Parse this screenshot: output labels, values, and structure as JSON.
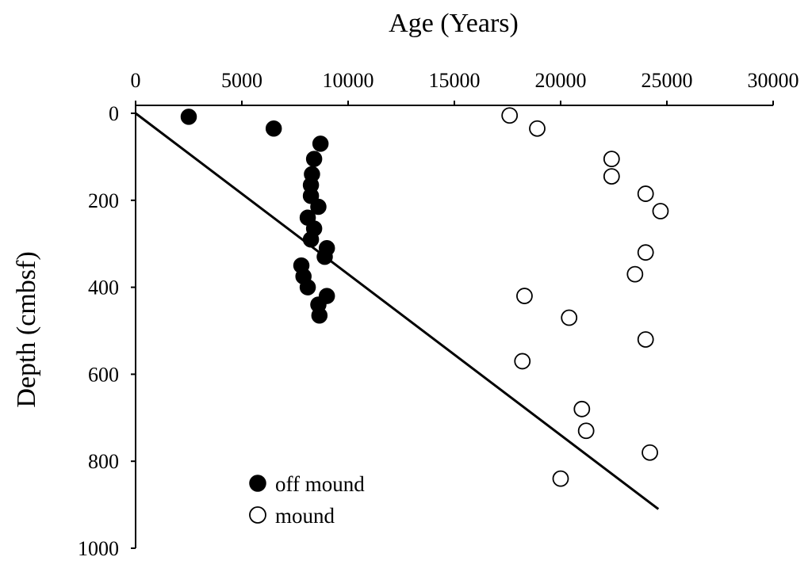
{
  "chart_data": {
    "type": "scatter",
    "xlabel": "Age (Years)",
    "ylabel": "Depth (cmbsf)",
    "xlim": [
      0,
      30000
    ],
    "ylim": [
      0,
      1000
    ],
    "xticks": [
      "0",
      "5000",
      "10000",
      "15000",
      "20000",
      "25000",
      "30000"
    ],
    "yticks": [
      "0",
      "200",
      "400",
      "600",
      "800",
      "1000"
    ],
    "y_inverted": true,
    "legend_position": "bottom-left",
    "series": [
      {
        "name": "off mound",
        "marker": "filled-circle",
        "color": "#000000",
        "points": [
          [
            2500,
            8
          ],
          [
            6500,
            35
          ],
          [
            8700,
            70
          ],
          [
            8400,
            105
          ],
          [
            8300,
            140
          ],
          [
            8250,
            165
          ],
          [
            8250,
            190
          ],
          [
            8600,
            215
          ],
          [
            8100,
            240
          ],
          [
            8400,
            265
          ],
          [
            8250,
            290
          ],
          [
            9000,
            310
          ],
          [
            8900,
            330
          ],
          [
            7800,
            350
          ],
          [
            7900,
            375
          ],
          [
            8100,
            400
          ],
          [
            9000,
            420
          ],
          [
            8600,
            440
          ],
          [
            8650,
            465
          ]
        ]
      },
      {
        "name": "mound",
        "marker": "open-circle",
        "color": "#ffffff",
        "points": [
          [
            17600,
            5
          ],
          [
            18900,
            35
          ],
          [
            22400,
            105
          ],
          [
            22400,
            145
          ],
          [
            24000,
            185
          ],
          [
            24700,
            225
          ],
          [
            24000,
            320
          ],
          [
            23500,
            370
          ],
          [
            18300,
            420
          ],
          [
            20400,
            470
          ],
          [
            24000,
            520
          ],
          [
            18200,
            570
          ],
          [
            21000,
            680
          ],
          [
            21200,
            730
          ],
          [
            24200,
            780
          ],
          [
            20000,
            840
          ]
        ]
      }
    ],
    "trend_line": {
      "x": [
        0,
        24600
      ],
      "y": [
        0,
        910
      ]
    }
  }
}
